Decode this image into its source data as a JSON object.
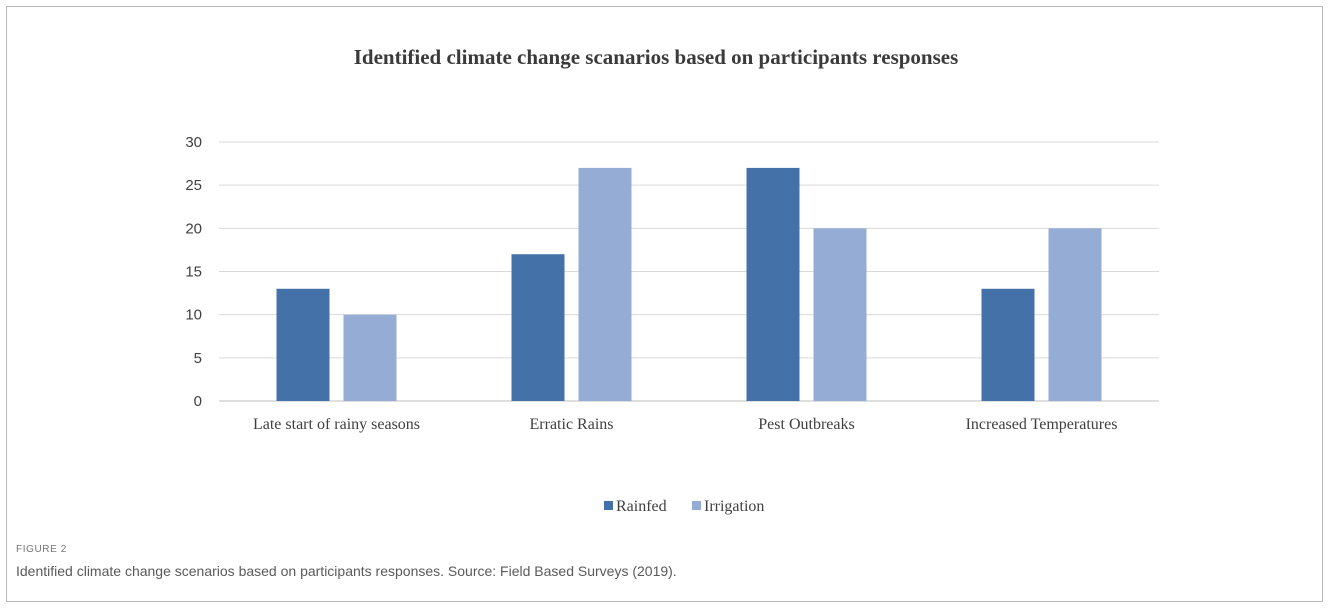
{
  "figure": {
    "label": "FIGURE 2",
    "caption": "Identified climate change scenarios based on participants responses. Source: Field Based Surveys (2019)."
  },
  "colors": {
    "rainfed": "#4472a8",
    "irrigation": "#95acd5",
    "grid": "#d9d9d9",
    "axis": "#bfbfbf"
  },
  "chart_data": {
    "type": "bar",
    "title": "Identified climate change scanarios based on participants responses",
    "categories": [
      "Late start of rainy seasons",
      "Erratic Rains",
      "Pest Outbreaks",
      "Increased Temperatures"
    ],
    "series": [
      {
        "name": "Rainfed",
        "values": [
          13,
          17,
          27,
          13
        ]
      },
      {
        "name": "Irrigation",
        "values": [
          10,
          27,
          20,
          20
        ]
      }
    ],
    "xlabel": "",
    "ylabel": "",
    "ylim": [
      0,
      30
    ],
    "yticks": [
      0,
      5,
      10,
      15,
      20,
      25,
      30
    ],
    "grid": true,
    "legend": "bottom-center"
  }
}
